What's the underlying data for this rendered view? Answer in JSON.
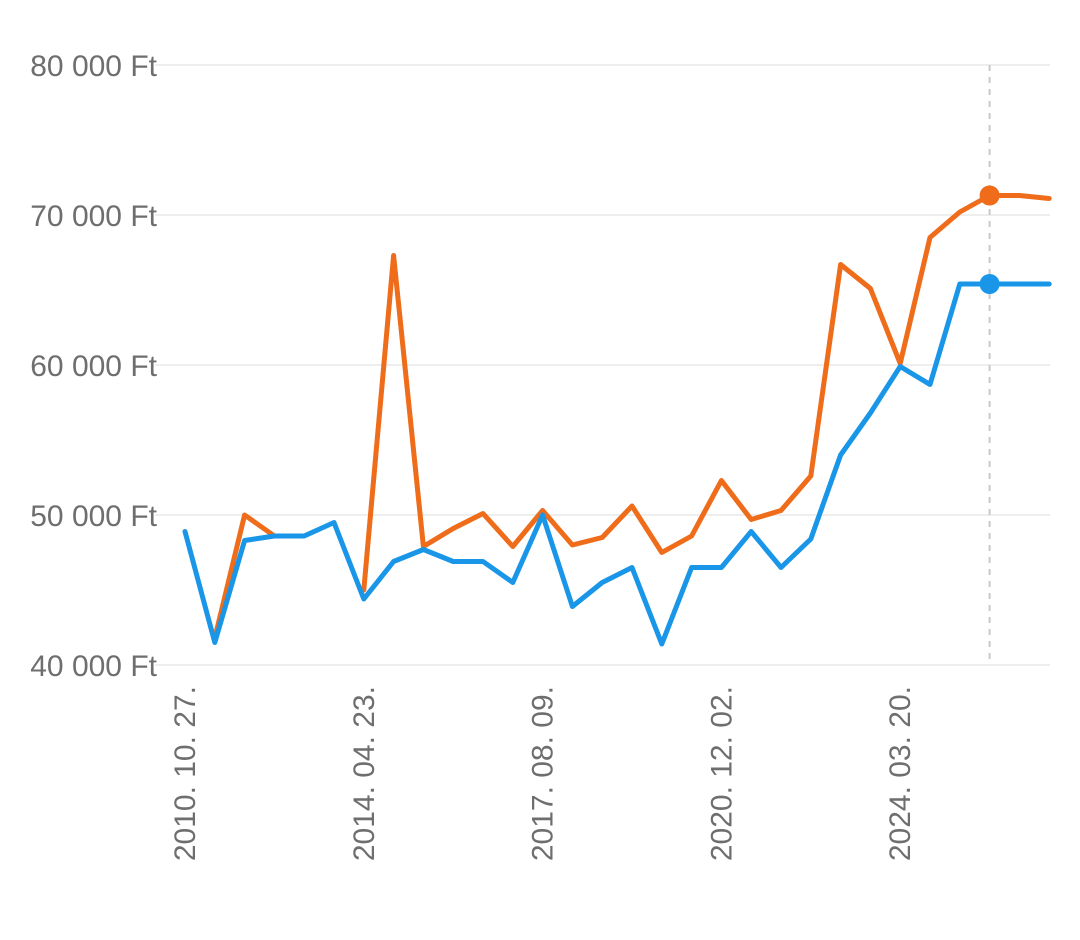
{
  "chart_data": {
    "type": "line",
    "y_tick_labels": [
      "40 000 Ft",
      "50 000 Ft",
      "60 000 Ft",
      "70 000 Ft",
      "80 000 Ft"
    ],
    "y_ticks": [
      40000,
      50000,
      60000,
      70000,
      80000
    ],
    "ylim": [
      40000,
      80000
    ],
    "x_tick_labels": [
      "2010. 10. 27.",
      "2014. 04. 23.",
      "2017. 08. 09.",
      "2020. 12. 02.",
      "2024. 03. 20."
    ],
    "x_tick_index": [
      0,
      6,
      12,
      18,
      24
    ],
    "grid": true,
    "x_count": 30,
    "highlight_index": 27,
    "series": [
      {
        "color": "#ee6c1a",
        "values": [
          null,
          41800,
          50000,
          48600,
          null,
          null,
          45000,
          67300,
          47900,
          49100,
          50100,
          47900,
          50300,
          48000,
          48500,
          50600,
          47500,
          48600,
          52300,
          49700,
          50300,
          52600,
          66700,
          65100,
          60100,
          68500,
          70200,
          71300,
          71300,
          71100
        ]
      },
      {
        "color": "#1a96e8",
        "values": [
          48900,
          41500,
          48300,
          48600,
          48600,
          49500,
          44400,
          46900,
          47700,
          46900,
          46900,
          45500,
          50000,
          43900,
          45500,
          46500,
          41400,
          46500,
          46500,
          48900,
          46500,
          48400,
          54000,
          56800,
          59900,
          58700,
          65400,
          65400,
          65400,
          65400
        ]
      }
    ]
  }
}
